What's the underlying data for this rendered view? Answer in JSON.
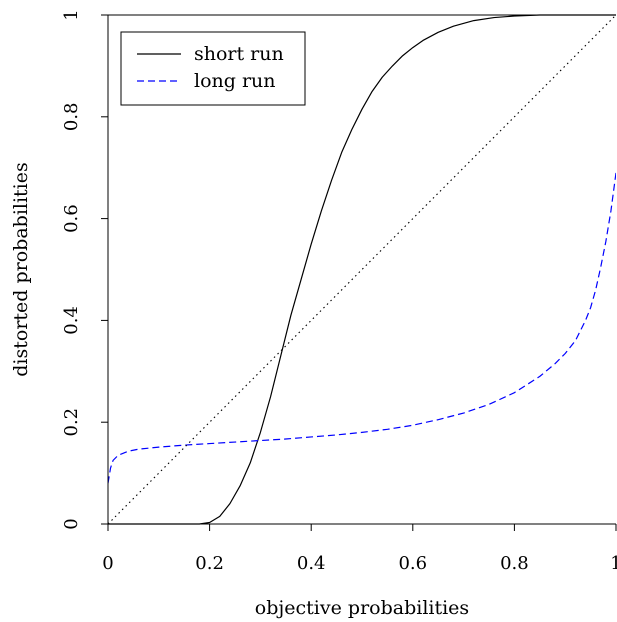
{
  "chart_data": {
    "type": "line",
    "title": "",
    "xlabel": "objective probabilities",
    "ylabel": "distorted probabilities",
    "xlim": [
      0,
      1
    ],
    "ylim": [
      0,
      1
    ],
    "grid": false,
    "legend_position": "top-left",
    "x_ticks": [
      {
        "value": 0,
        "label": "0"
      },
      {
        "value": 0.2,
        "label": "0.2"
      },
      {
        "value": 0.4,
        "label": "0.4"
      },
      {
        "value": 0.6,
        "label": "0.6"
      },
      {
        "value": 0.8,
        "label": "0.8"
      },
      {
        "value": 1,
        "label": "1"
      }
    ],
    "y_ticks": [
      {
        "value": 0,
        "label": "0"
      },
      {
        "value": 0.2,
        "label": "0.2"
      },
      {
        "value": 0.4,
        "label": "0.4"
      },
      {
        "value": 0.6,
        "label": "0.6"
      },
      {
        "value": 0.8,
        "label": "0.8"
      },
      {
        "value": 1,
        "label": "1"
      }
    ],
    "series": [
      {
        "name": "short run",
        "color": "#000000",
        "dash": "solid",
        "x": [
          0,
          0.1,
          0.18,
          0.2,
          0.22,
          0.24,
          0.26,
          0.28,
          0.3,
          0.32,
          0.34,
          0.36,
          0.38,
          0.4,
          0.42,
          0.44,
          0.46,
          0.48,
          0.5,
          0.52,
          0.54,
          0.56,
          0.58,
          0.6,
          0.62,
          0.65,
          0.68,
          0.72,
          0.76,
          0.8,
          0.85,
          0.9,
          1
        ],
        "y": [
          0,
          0,
          0,
          0.003,
          0.015,
          0.04,
          0.075,
          0.12,
          0.18,
          0.25,
          0.33,
          0.41,
          0.48,
          0.55,
          0.615,
          0.675,
          0.73,
          0.775,
          0.815,
          0.85,
          0.878,
          0.9,
          0.92,
          0.936,
          0.95,
          0.966,
          0.978,
          0.989,
          0.995,
          0.998,
          1,
          1,
          1
        ]
      },
      {
        "name": "long run",
        "color": "#0000ff",
        "dash": "dashed",
        "x": [
          0,
          0.005,
          0.01,
          0.02,
          0.04,
          0.06,
          0.1,
          0.15,
          0.2,
          0.25,
          0.3,
          0.35,
          0.4,
          0.45,
          0.5,
          0.55,
          0.6,
          0.65,
          0.7,
          0.75,
          0.8,
          0.85,
          0.88,
          0.9,
          0.92,
          0.94,
          0.95,
          0.96,
          0.97,
          0.98,
          0.99,
          1
        ],
        "y": [
          0.08,
          0.11,
          0.125,
          0.135,
          0.143,
          0.147,
          0.151,
          0.155,
          0.158,
          0.161,
          0.164,
          0.167,
          0.171,
          0.175,
          0.18,
          0.186,
          0.194,
          0.205,
          0.218,
          0.235,
          0.258,
          0.29,
          0.315,
          0.335,
          0.36,
          0.4,
          0.425,
          0.46,
          0.505,
          0.555,
          0.615,
          0.69
        ]
      },
      {
        "color": "#000000",
        "dash": "dotted",
        "x": [
          0,
          1
        ],
        "y": [
          0,
          1
        ]
      }
    ]
  }
}
